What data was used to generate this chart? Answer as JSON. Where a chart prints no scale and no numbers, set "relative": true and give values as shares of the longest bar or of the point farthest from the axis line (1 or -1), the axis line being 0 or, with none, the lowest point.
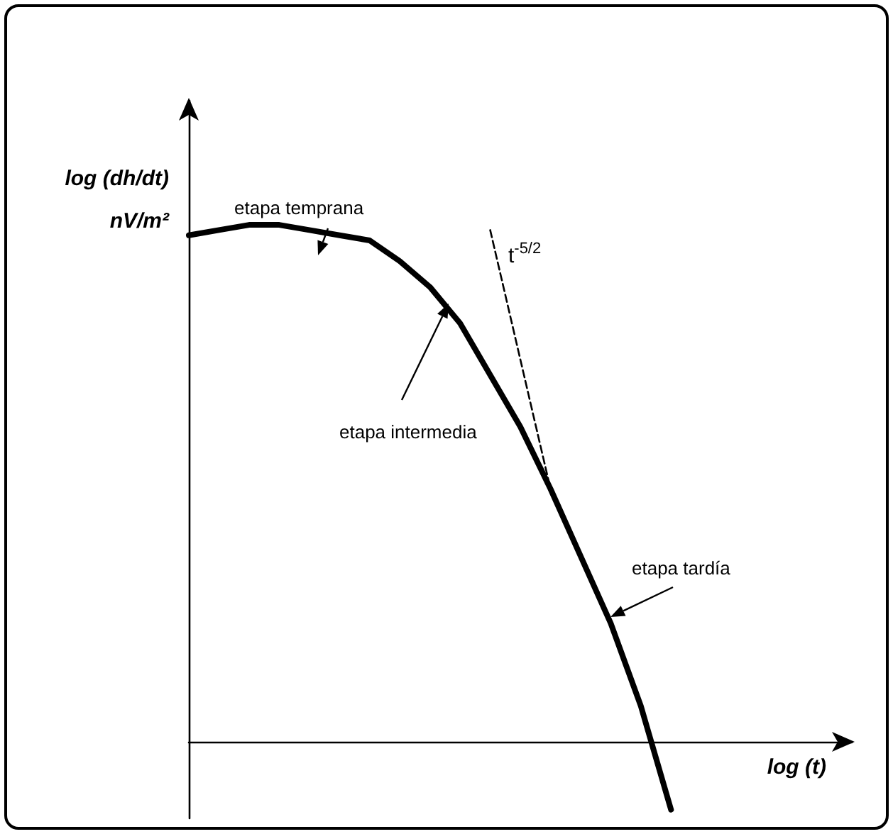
{
  "chart_data": {
    "type": "line",
    "relative": true,
    "xlabel": "log (t)",
    "ylabel": "log (dh/dt) nV/m²",
    "marker": "none",
    "grid": false,
    "categories": [
      null,
      null,
      null,
      null,
      null,
      null,
      null,
      null,
      null,
      null,
      null,
      null,
      null,
      null,
      null,
      null,
      null,
      null,
      null,
      null,
      null,
      null,
      null
    ],
    "series": [
      {
        "color": "#000000",
        "line_style": "solid",
        "values": [
          0.98,
          0.99,
          1.0,
          1.0,
          0.99,
          0.98,
          0.97,
          0.93,
          0.88,
          0.81,
          0.71,
          0.61,
          0.49,
          0.36,
          0.23,
          0.07,
          -0.13,
          null,
          null,
          null,
          null,
          null,
          null
        ]
      },
      {
        "type": "line",
        "color": "#000000",
        "line_style": "dashed",
        "values": [
          null,
          null,
          null,
          null,
          null,
          null,
          null,
          null,
          null,
          null,
          0.99,
          0.74,
          0.49,
          null,
          null,
          null,
          null,
          null,
          null,
          null,
          null,
          null,
          null
        ]
      }
    ],
    "annotations": [
      "etapa temprana",
      "t$^{-5/2}$",
      "etapa intermedia",
      "etapa tardía"
    ]
  }
}
